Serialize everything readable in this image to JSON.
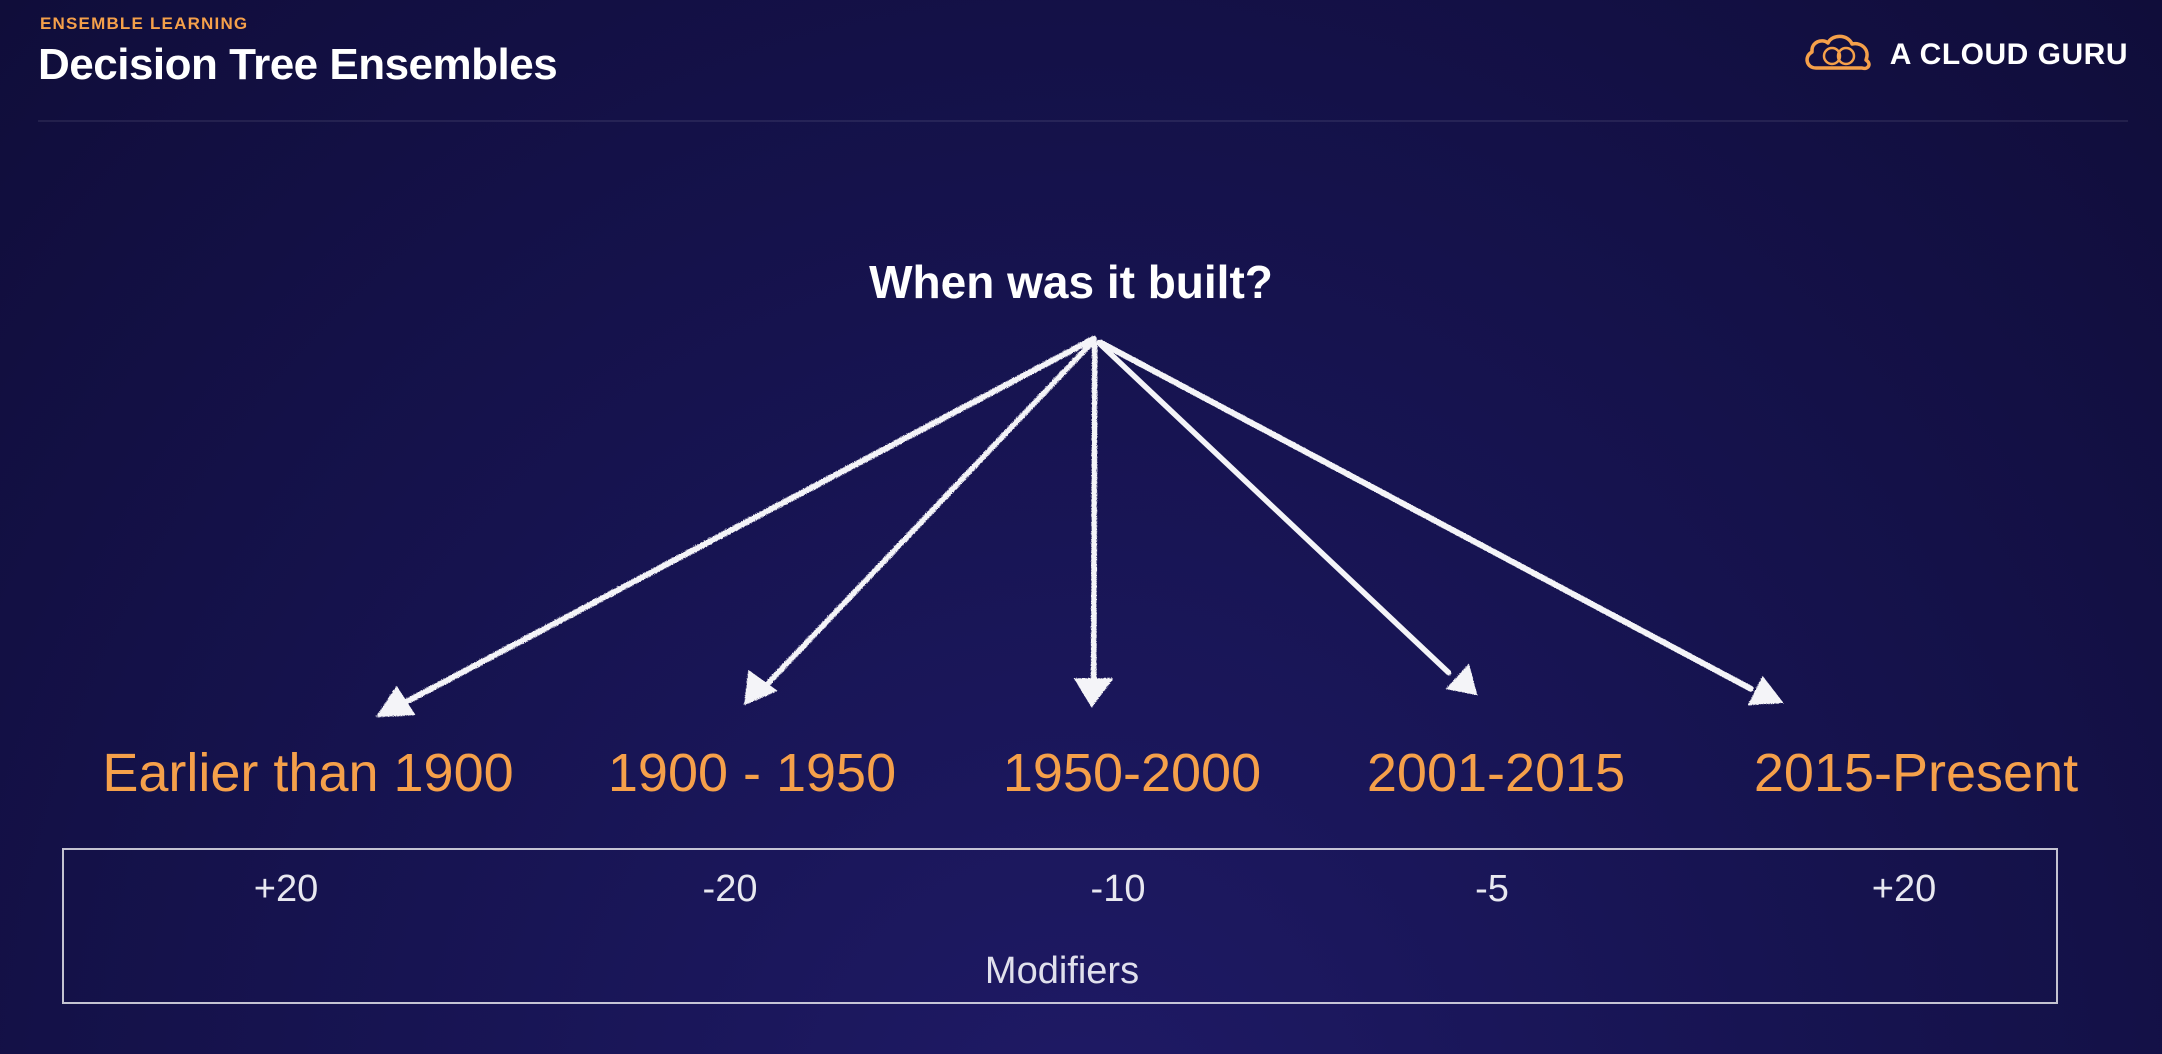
{
  "header": {
    "eyebrow": "ENSEMBLE LEARNING",
    "title": "Decision Tree Ensembles",
    "brand": "A CLOUD GURU",
    "brand_icon": "cloud-logo-icon"
  },
  "diagram": {
    "question": "When was it built?",
    "branches": [
      {
        "label": "Earlier than 1900",
        "modifier": "+20"
      },
      {
        "label": "1900 - 1950",
        "modifier": "-20"
      },
      {
        "label": "1950-2000",
        "modifier": "-10"
      },
      {
        "label": "2001-2015",
        "modifier": "-5"
      },
      {
        "label": "2015-Present",
        "modifier": "+20"
      }
    ],
    "modifiers_caption": "Modifiers"
  },
  "colors": {
    "accent": "#f5a04a",
    "background": "#171452",
    "text": "#ffffff"
  }
}
